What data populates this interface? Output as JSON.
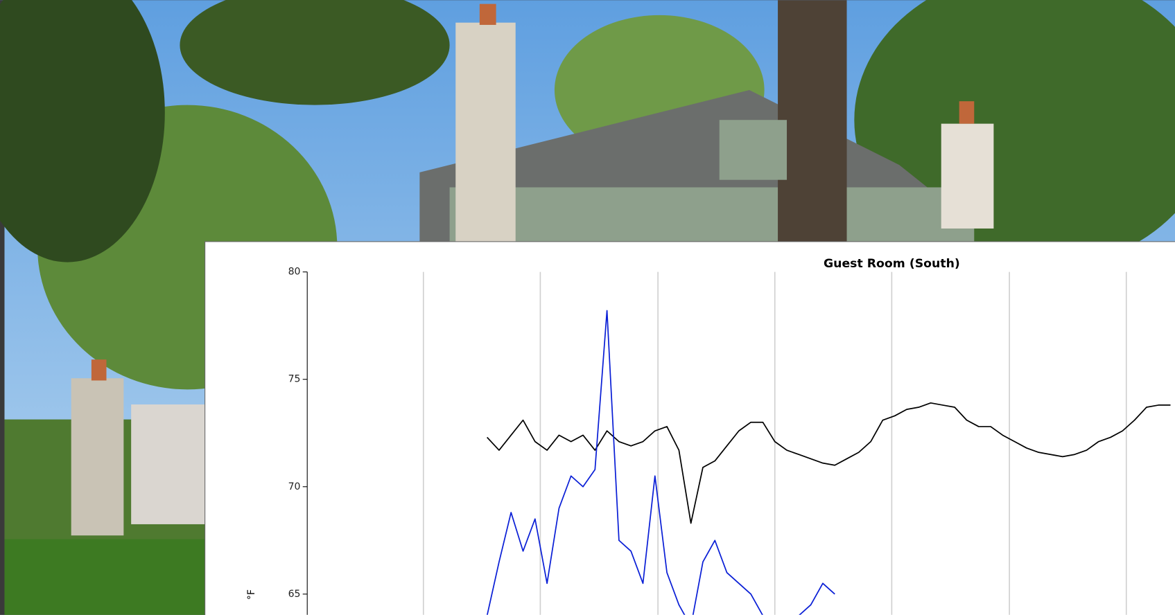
{
  "chart_data": {
    "type": "line",
    "title": "Guest Room (South)",
    "y_label": "°F",
    "ylim": [
      64,
      80
    ],
    "yticks": [
      65,
      70,
      75,
      80
    ],
    "grid": true,
    "series": [
      {
        "name": null,
        "color": "#000000",
        "values": [
          null,
          null,
          null,
          null,
          null,
          null,
          null,
          null,
          null,
          null,
          null,
          null,
          null,
          null,
          null,
          72.3,
          71.7,
          72.4,
          73.1,
          72.1,
          71.7,
          72.4,
          72.1,
          72.4,
          71.7,
          72.6,
          72.1,
          71.9,
          72.1,
          72.6,
          72.8,
          71.7,
          68.3,
          70.9,
          71.2,
          71.9,
          72.6,
          73.0,
          73.0,
          72.1,
          71.7,
          71.5,
          71.3,
          71.1,
          71.0,
          71.3,
          71.6,
          72.1,
          73.1,
          73.3,
          73.6,
          73.7,
          73.9,
          73.8,
          73.7,
          73.1,
          72.8,
          72.8,
          72.4,
          72.1,
          71.8,
          71.6,
          71.5,
          71.4,
          71.5,
          71.7,
          72.1,
          72.3,
          72.6,
          73.1,
          73.7,
          73.8,
          73.8
        ]
      },
      {
        "name": null,
        "color": "#0a1fd6",
        "values": [
          null,
          null,
          null,
          null,
          null,
          null,
          null,
          null,
          null,
          null,
          null,
          null,
          null,
          null,
          null,
          64.0,
          66.5,
          68.8,
          67.0,
          68.5,
          65.5,
          69.0,
          70.5,
          70.0,
          70.8,
          78.2,
          67.5,
          67.0,
          65.5,
          70.5,
          66.0,
          64.5,
          63.5,
          66.5,
          67.5,
          66.0,
          65.5,
          65.0,
          64.0,
          63.8,
          63.5,
          64.0,
          64.5,
          65.5,
          65.0,
          null,
          null,
          null,
          null,
          null,
          null,
          null,
          null,
          null,
          null,
          null,
          null,
          null,
          null,
          null,
          null,
          null,
          null,
          null,
          null,
          null,
          null,
          null,
          null,
          null,
          null,
          null,
          null
        ]
      }
    ]
  }
}
